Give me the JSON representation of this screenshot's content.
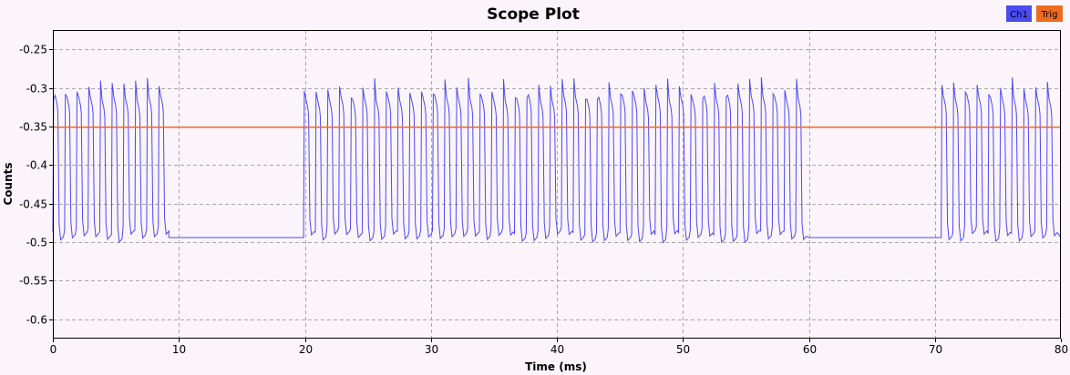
{
  "chart_data": {
    "type": "line",
    "title": "Scope Plot",
    "xlabel": "Time (ms)",
    "ylabel": "Counts",
    "xlim": [
      0,
      80
    ],
    "ylim": [
      -0.625,
      -0.225
    ],
    "x_ticks": [
      0,
      10,
      20,
      30,
      40,
      50,
      60,
      70,
      80
    ],
    "y_ticks": [
      -0.25,
      -0.3,
      -0.35,
      -0.4,
      -0.45,
      -0.5,
      -0.55,
      -0.6
    ],
    "grid": true,
    "legend_position": "top-right",
    "series": [
      {
        "name": "Ch1",
        "color": "#4b4bf0",
        "signal": {
          "high_level": -0.325,
          "low_level": -0.497,
          "idle_level": -0.494,
          "overshoot_peak": -0.3,
          "bit_period_ms": 0.93,
          "bursts": [
            {
              "start": 0,
              "end": 9.2
            },
            {
              "start": 19.9,
              "end": 60.0
            },
            {
              "start": 70.5,
              "end": 80.0
            }
          ]
        }
      },
      {
        "name": "Trig",
        "color": "#f06a1e",
        "values": [
          [
            0,
            -0.351
          ],
          [
            80,
            -0.351
          ]
        ]
      }
    ]
  }
}
